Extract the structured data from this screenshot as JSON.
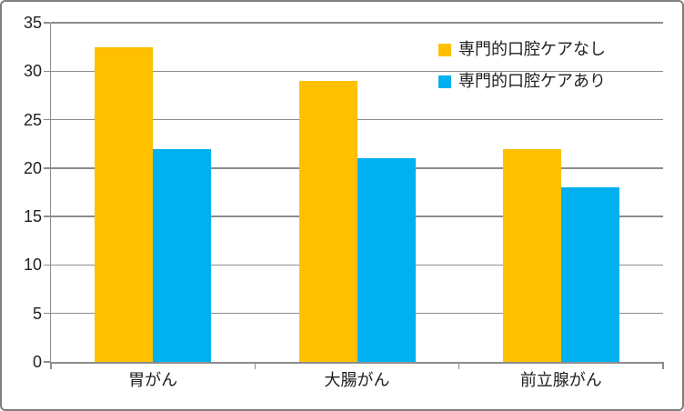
{
  "chart_data": {
    "type": "bar",
    "title": "",
    "xlabel": "",
    "ylabel": "",
    "categories": [
      "胃がん",
      "大腸がん",
      "前立腺がん"
    ],
    "series": [
      {
        "name": "専門的口腔ケアなし",
        "color": "#FFC000",
        "values": [
          32.5,
          29,
          22
        ]
      },
      {
        "name": "専門的口腔ケアあり",
        "color": "#00B0F0",
        "values": [
          22,
          21,
          18
        ]
      }
    ],
    "ylim": [
      0,
      35
    ],
    "ytick_interval": 5,
    "yticks": [
      0,
      5,
      10,
      15,
      20,
      25,
      30,
      35
    ],
    "grid": true,
    "legend_position": "top-right"
  },
  "colors": {
    "background": "#FFFFFF",
    "frame_border": "#7F7F7F",
    "axis": "#8C8C8C",
    "gridline": "#8C8C8C",
    "text": "#1F1F1F",
    "series_nashi": "#FFC000",
    "series_ari": "#00B0F0"
  }
}
